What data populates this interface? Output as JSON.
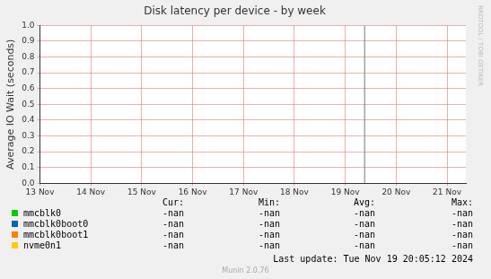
{
  "chart_data": {
    "type": "line",
    "title": "Disk latency per device - by week",
    "y_label": "Average IO Wait (seconds)",
    "x": [
      13,
      14,
      15,
      16,
      17,
      18,
      19,
      20,
      21
    ],
    "xlim": [
      13,
      21.37
    ],
    "xticks": [
      {
        "value": 13,
        "label": "13 Nov"
      },
      {
        "value": 14,
        "label": "14 Nov"
      },
      {
        "value": 15,
        "label": "15 Nov"
      },
      {
        "value": 16,
        "label": "16 Nov"
      },
      {
        "value": 17,
        "label": "17 Nov"
      },
      {
        "value": 18,
        "label": "18 Nov"
      },
      {
        "value": 19,
        "label": "19 Nov"
      },
      {
        "value": 20,
        "label": "20 Nov"
      },
      {
        "value": 21,
        "label": "21 Nov"
      }
    ],
    "ylim": [
      0,
      1
    ],
    "yticks": [
      {
        "value": 0,
        "label": "0.0"
      },
      0.1,
      0.2,
      0.3,
      0.4,
      0.5,
      0.6,
      0.7,
      0.8,
      0.9,
      {
        "value": 1,
        "label": "1.0"
      }
    ],
    "grid": true,
    "vline": 19.38,
    "columns": [
      "Cur:",
      "Min:",
      "Avg:",
      "Max:"
    ],
    "series": [
      {
        "name": "mmcblk0",
        "color": "#00cc00",
        "values": [
          null,
          null,
          null,
          null,
          null,
          null,
          null,
          null,
          null
        ],
        "cur": "-nan",
        "min": "-nan",
        "avg": "-nan",
        "max": "-nan"
      },
      {
        "name": "mmcblk0boot0",
        "color": "#0066b3",
        "values": [
          null,
          null,
          null,
          null,
          null,
          null,
          null,
          null,
          null
        ],
        "cur": "-nan",
        "min": "-nan",
        "avg": "-nan",
        "max": "-nan"
      },
      {
        "name": "mmcblk0boot1",
        "color": "#ff8000",
        "values": [
          null,
          null,
          null,
          null,
          null,
          null,
          null,
          null,
          null
        ],
        "cur": "-nan",
        "min": "-nan",
        "avg": "-nan",
        "max": "-nan"
      },
      {
        "name": "nvme0n1",
        "color": "#ffcc00",
        "values": [
          null,
          null,
          null,
          null,
          null,
          null,
          null,
          null,
          null
        ],
        "cur": "-nan",
        "min": "-nan",
        "avg": "-nan",
        "max": "-nan"
      }
    ],
    "footer": "Last update: Tue Nov 19 20:05:12 2024",
    "credit": "Munin 2.0.76",
    "watermark": "RRDTOOL / TOBI OETIKER"
  }
}
